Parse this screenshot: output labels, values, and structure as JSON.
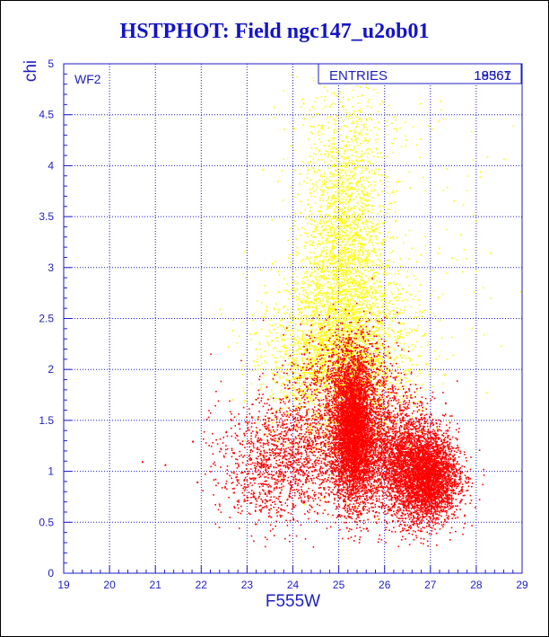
{
  "chart_data": {
    "type": "scatter",
    "title": "HSTPHOT: Field ngc147_u2ob01",
    "xlabel": "F555W",
    "ylabel": "chi",
    "xlim": [
      19,
      29
    ],
    "ylim": [
      0,
      5
    ],
    "xticks": [
      "19",
      "20",
      "21",
      "22",
      "23",
      "24",
      "25",
      "26",
      "27",
      "28",
      "29"
    ],
    "yticks": [
      "0",
      "0.5",
      "1",
      "1.5",
      "2",
      "2.5",
      "3",
      "3.5",
      "4",
      "4.5",
      "5"
    ],
    "grid": true,
    "panel_label": "WF2",
    "stats_box": {
      "label": "ENTRIES",
      "value": "19567",
      "overprint": "18361"
    },
    "series": [
      {
        "color": "#ffff00",
        "clusters": [
          {
            "x": 25.1,
            "y": 3.0,
            "sx": 0.45,
            "sy": 0.75,
            "n": 2600
          },
          {
            "x": 25.0,
            "y": 2.1,
            "sx": 0.75,
            "sy": 0.35,
            "n": 1400
          },
          {
            "x": 24.2,
            "y": 2.2,
            "sx": 0.6,
            "sy": 0.45,
            "n": 500
          },
          {
            "x": 26.0,
            "y": 2.3,
            "sx": 0.6,
            "sy": 0.6,
            "n": 350
          },
          {
            "x": 25.2,
            "y": 4.3,
            "sx": 0.6,
            "sy": 0.35,
            "n": 250
          },
          {
            "x": 26.8,
            "y": 3.5,
            "sx": 1.2,
            "sy": 1.0,
            "n": 80
          }
        ]
      },
      {
        "color": "#ff0000",
        "clusters": [
          {
            "x": 25.3,
            "y": 1.4,
            "sx": 0.22,
            "sy": 0.35,
            "n": 4200
          },
          {
            "x": 26.9,
            "y": 0.95,
            "sx": 0.35,
            "sy": 0.22,
            "n": 3400
          },
          {
            "x": 26.2,
            "y": 1.15,
            "sx": 0.45,
            "sy": 0.3,
            "n": 2000
          },
          {
            "x": 24.2,
            "y": 1.2,
            "sx": 0.85,
            "sy": 0.3,
            "n": 1600
          },
          {
            "x": 25.2,
            "y": 1.9,
            "sx": 0.55,
            "sy": 0.28,
            "n": 900
          },
          {
            "x": 23.3,
            "y": 0.9,
            "sx": 0.5,
            "sy": 0.25,
            "n": 300
          }
        ],
        "outliers": [
          {
            "x": 20.7,
            "y": 1.1
          },
          {
            "x": 21.2,
            "y": 1.07
          },
          {
            "x": 21.8,
            "y": 1.3
          },
          {
            "x": 21.9,
            "y": 0.9
          }
        ]
      }
    ]
  }
}
